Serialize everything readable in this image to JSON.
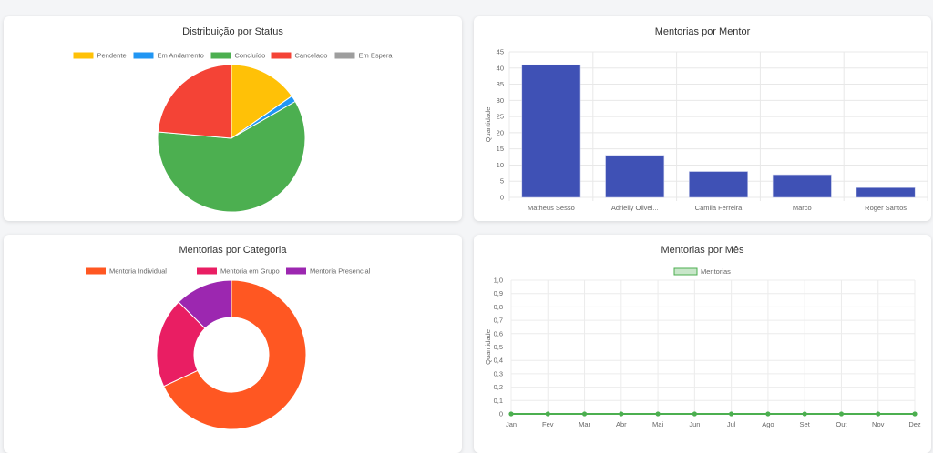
{
  "chart_data": [
    {
      "type": "pie",
      "title": "Distribuição por Status",
      "legend_position": "top",
      "categories": [
        "Pendente",
        "Em Andamento",
        "Concluído",
        "Cancelado",
        "Em Espera"
      ],
      "values": [
        11,
        1,
        43,
        17,
        0
      ],
      "colors": [
        "#FFC107",
        "#2196F3",
        "#4CAF50",
        "#F44336",
        "#9E9E9E"
      ]
    },
    {
      "type": "bar",
      "title": "Mentorias por Mentor",
      "categories": [
        "Matheus Sesso",
        "Adrielly Olivei...",
        "Camila Ferreira",
        "Marco",
        "Roger Santos"
      ],
      "values": [
        41,
        13,
        8,
        7,
        3
      ],
      "xlabel": "",
      "ylabel": "Quantidade",
      "ylim": [
        0,
        45
      ],
      "yticks": [
        "0",
        "5",
        "10",
        "15",
        "20",
        "25",
        "30",
        "35",
        "40",
        "45"
      ],
      "grid": true,
      "color": "#3F51B5"
    },
    {
      "type": "pie",
      "subtype": "doughnut",
      "title": "Mentorias por Categoria",
      "legend_position": "top",
      "categories": [
        "Mentoria Individual",
        "Mentoria em Grupo",
        "Mentoria Presencial"
      ],
      "values": [
        49,
        14,
        9
      ],
      "colors": [
        "#FF5722",
        "#E91E63",
        "#9C27B0"
      ]
    },
    {
      "type": "line",
      "title": "Mentorias por Mês",
      "legend_position": "top",
      "series": [
        {
          "name": "Mentorias",
          "values": [
            0,
            0,
            0,
            0,
            0,
            0,
            0,
            0,
            0,
            0,
            0,
            0
          ]
        }
      ],
      "categories": [
        "Jan",
        "Fev",
        "Mar",
        "Abr",
        "Mai",
        "Jun",
        "Jul",
        "Ago",
        "Set",
        "Out",
        "Nov",
        "Dez"
      ],
      "ylabel": "Quantidade",
      "ylim": [
        0,
        1
      ],
      "yticks": [
        "0",
        "0,1",
        "0,2",
        "0,3",
        "0,4",
        "0,5",
        "0,6",
        "0,7",
        "0,8",
        "0,9",
        "1,0"
      ],
      "grid": true,
      "color": "#4CAF50"
    }
  ]
}
